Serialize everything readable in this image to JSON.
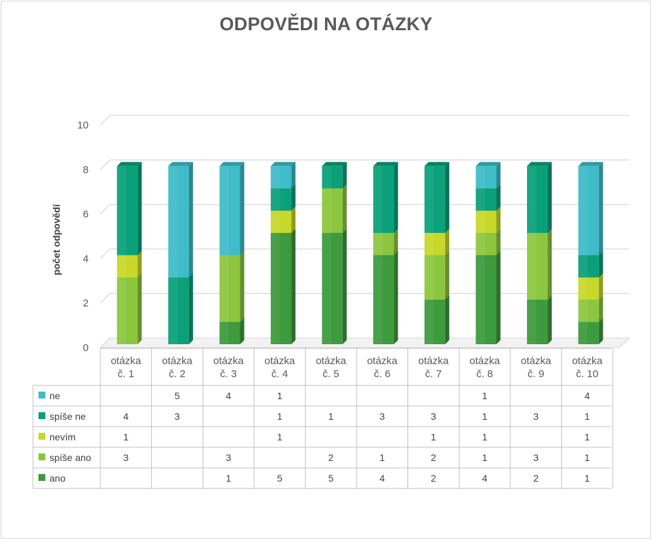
{
  "chart_data": {
    "type": "bar",
    "stacked": true,
    "three_d": true,
    "title": "ODPOVĚDI NA OTÁZKY",
    "xlabel": "",
    "ylabel": "počet odpovědí",
    "ylim": [
      0,
      10
    ],
    "yticks": [
      0,
      2,
      4,
      6,
      8,
      10
    ],
    "grid": true,
    "legend": "data-table",
    "categories": [
      [
        "otázka",
        "č. 1"
      ],
      [
        "otázka",
        "č. 2"
      ],
      [
        "otázka",
        "č. 3"
      ],
      [
        "otázka",
        "č. 4"
      ],
      [
        "otázka",
        "č. 5"
      ],
      [
        "otázka",
        "č. 6"
      ],
      [
        "otázka",
        "č. 7"
      ],
      [
        "otázka",
        "č. 8"
      ],
      [
        "otázka",
        "č. 9"
      ],
      [
        "otázka",
        "č. 10"
      ]
    ],
    "series": [
      {
        "name": "ano",
        "color": "#3d9a3d",
        "values": [
          null,
          null,
          1,
          5,
          5,
          4,
          2,
          4,
          2,
          1
        ]
      },
      {
        "name": "spíše ano",
        "color": "#8cc63f",
        "values": [
          3,
          null,
          3,
          null,
          2,
          1,
          2,
          1,
          3,
          1
        ]
      },
      {
        "name": "nevím",
        "color": "#c7d82a",
        "values": [
          1,
          null,
          null,
          1,
          null,
          null,
          1,
          1,
          null,
          1
        ]
      },
      {
        "name": "spíše ne",
        "color": "#0aa17a",
        "values": [
          4,
          3,
          null,
          1,
          1,
          3,
          3,
          1,
          3,
          1
        ]
      },
      {
        "name": "ne",
        "color": "#3fbcc9",
        "values": [
          null,
          5,
          4,
          1,
          null,
          null,
          null,
          1,
          null,
          4
        ]
      }
    ],
    "table_row_order": [
      "ne",
      "spíše ne",
      "nevím",
      "spíše ano",
      "ano"
    ]
  }
}
